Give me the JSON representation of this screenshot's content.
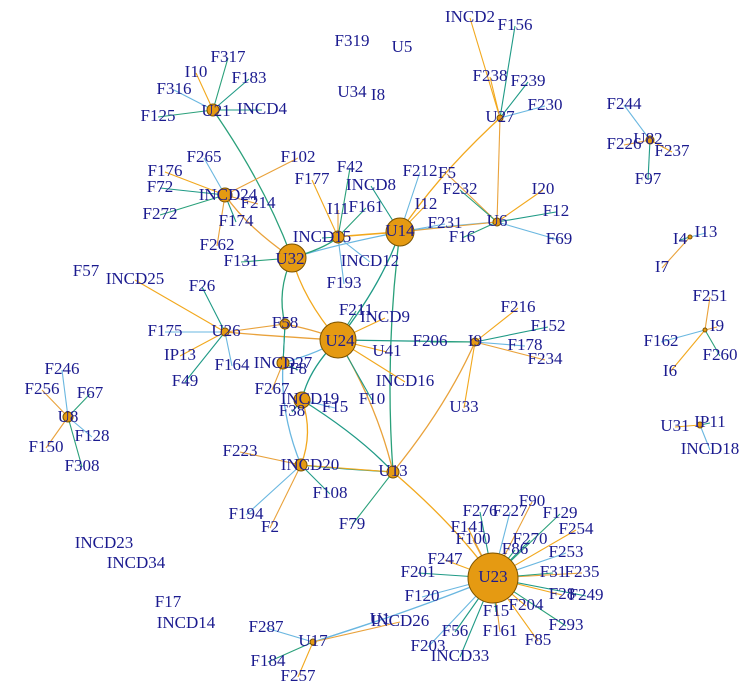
{
  "nodes": [
    {
      "label": "INCD2"
    },
    {
      "label": "F156"
    },
    {
      "label": "F319"
    },
    {
      "label": "U5"
    },
    {
      "label": "F317"
    },
    {
      "label": "I10"
    },
    {
      "label": "F183"
    },
    {
      "label": "F316"
    },
    {
      "label": "U34"
    },
    {
      "label": "I8"
    },
    {
      "label": "F238"
    },
    {
      "label": "F239"
    },
    {
      "label": "F230"
    },
    {
      "label": "U27"
    },
    {
      "label": "F125"
    },
    {
      "label": "U21"
    },
    {
      "label": "INCD4"
    },
    {
      "label": "F244"
    },
    {
      "label": "F226"
    },
    {
      "label": "U82"
    },
    {
      "label": "F237"
    },
    {
      "label": "F97"
    },
    {
      "label": "F265"
    },
    {
      "label": "F102"
    },
    {
      "label": "F42"
    },
    {
      "label": "F176"
    },
    {
      "label": "F72"
    },
    {
      "label": "INCD24"
    },
    {
      "label": "F214"
    },
    {
      "label": "F272"
    },
    {
      "label": "F177"
    },
    {
      "label": "INCD8"
    },
    {
      "label": "F212"
    },
    {
      "label": "F5"
    },
    {
      "label": "F232"
    },
    {
      "label": "I20"
    },
    {
      "label": "F12"
    },
    {
      "label": "F69"
    },
    {
      "label": "I11"
    },
    {
      "label": "F161"
    },
    {
      "label": "I12"
    },
    {
      "label": "F174"
    },
    {
      "label": "F231"
    },
    {
      "label": "U6"
    },
    {
      "label": "F16"
    },
    {
      "label": "U14"
    },
    {
      "label": "INCD15"
    },
    {
      "label": "INCD12"
    },
    {
      "label": "F262"
    },
    {
      "label": "F131"
    },
    {
      "label": "U32"
    },
    {
      "label": "I4"
    },
    {
      "label": "I13"
    },
    {
      "label": "I7"
    },
    {
      "label": "F57"
    },
    {
      "label": "INCD25"
    },
    {
      "label": "F26"
    },
    {
      "label": "F193"
    },
    {
      "label": "F251"
    },
    {
      "label": "F211"
    },
    {
      "label": "F216"
    },
    {
      "label": "F152"
    },
    {
      "label": "F175"
    },
    {
      "label": "U26"
    },
    {
      "label": "F58"
    },
    {
      "label": "INCD9"
    },
    {
      "label": "I9"
    },
    {
      "label": "F178"
    },
    {
      "label": "F234"
    },
    {
      "label": "F206"
    },
    {
      "label": "U41"
    },
    {
      "label": "U24"
    },
    {
      "label": "F162"
    },
    {
      "label": "I9"
    },
    {
      "label": "F260"
    },
    {
      "label": "I6"
    },
    {
      "label": "INCD27"
    },
    {
      "label": "F246"
    },
    {
      "label": "F256"
    },
    {
      "label": "F67"
    },
    {
      "label": "IP13"
    },
    {
      "label": "F49"
    },
    {
      "label": "F164"
    },
    {
      "label": "F267"
    },
    {
      "label": "F8"
    },
    {
      "label": "INCD16"
    },
    {
      "label": "F10"
    },
    {
      "label": "F15"
    },
    {
      "label": "INCD19"
    },
    {
      "label": "F38"
    },
    {
      "label": "U33"
    },
    {
      "label": "U8"
    },
    {
      "label": "F128"
    },
    {
      "label": "F150"
    },
    {
      "label": "F308"
    },
    {
      "label": "U31"
    },
    {
      "label": "IP11"
    },
    {
      "label": "INCD18"
    },
    {
      "label": "F223"
    },
    {
      "label": "INCD20"
    },
    {
      "label": "U13"
    },
    {
      "label": "F108"
    },
    {
      "label": "F194"
    },
    {
      "label": "F2"
    },
    {
      "label": "F79"
    },
    {
      "label": "F141"
    },
    {
      "label": "F276"
    },
    {
      "label": "F227"
    },
    {
      "label": "F90"
    },
    {
      "label": "F129"
    },
    {
      "label": "F254"
    },
    {
      "label": "F270"
    },
    {
      "label": "F253"
    },
    {
      "label": "F100"
    },
    {
      "label": "F86"
    },
    {
      "label": "F247"
    },
    {
      "label": "F201"
    },
    {
      "label": "U23"
    },
    {
      "label": "F235"
    },
    {
      "label": "F31"
    },
    {
      "label": "F28"
    },
    {
      "label": "F249"
    },
    {
      "label": "F120"
    },
    {
      "label": "INCD23"
    },
    {
      "label": "INCD34"
    },
    {
      "label": "F17"
    },
    {
      "label": "INCD14"
    },
    {
      "label": "U1"
    },
    {
      "label": "INCD26"
    },
    {
      "label": "F15"
    },
    {
      "label": "F204"
    },
    {
      "label": "F56"
    },
    {
      "label": "F203"
    },
    {
      "label": "F161"
    },
    {
      "label": "F293"
    },
    {
      "label": "F85"
    },
    {
      "label": "INCD33"
    },
    {
      "label": "F287"
    },
    {
      "label": "U17"
    },
    {
      "label": "F184"
    },
    {
      "label": "F257"
    }
  ]
}
